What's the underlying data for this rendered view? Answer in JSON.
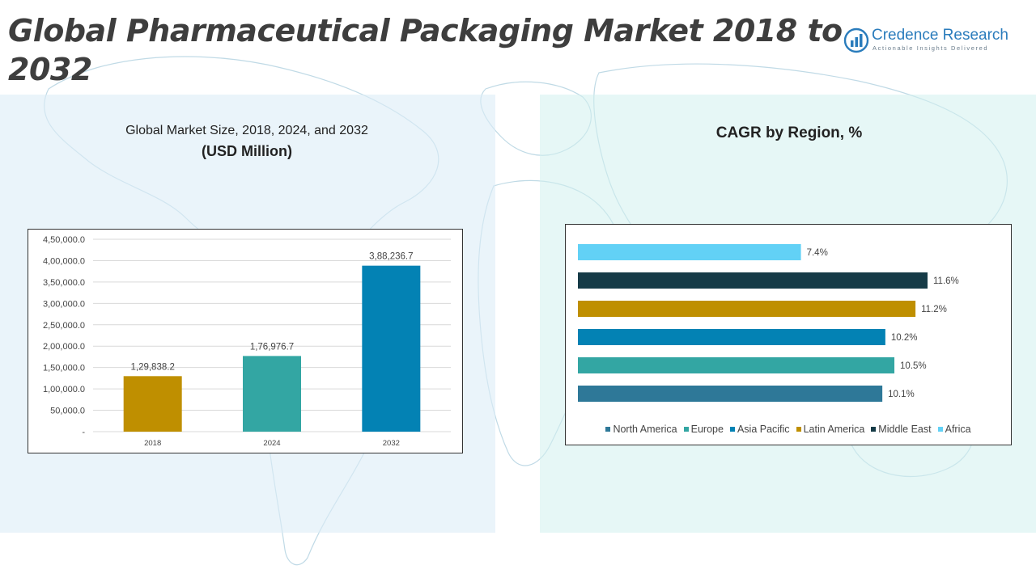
{
  "header": {
    "title": "Global Pharmaceutical Packaging Market 2018 to 2032"
  },
  "logo": {
    "name": "Credence Research",
    "tagline": "Actionable Insights Delivered",
    "icon": "bar-chart-circle-icon"
  },
  "chart_data": [
    {
      "type": "bar",
      "title": "Global Market Size, 2018, 2024, and 2032",
      "subtitle": "(USD Million)",
      "categories": [
        "2018",
        "2024",
        "2032"
      ],
      "values": [
        129838.2,
        176976.7,
        388236.7
      ],
      "value_labels": [
        "1,29,838.2",
        "1,76,976.7",
        "3,88,236.7"
      ],
      "colors": [
        "#bf8f00",
        "#33a6a3",
        "#0382b4"
      ],
      "ylim": [
        0,
        450000
      ],
      "yticks": [
        "-",
        "50,000.0",
        "1,00,000.0",
        "1,50,000.0",
        "2,00,000.0",
        "2,50,000.0",
        "3,00,000.0",
        "3,50,000.0",
        "4,00,000.0",
        "4,50,000.0"
      ],
      "ytick_values": [
        0,
        50000,
        100000,
        150000,
        200000,
        250000,
        300000,
        350000,
        400000,
        450000
      ],
      "grid": true,
      "xlabel": "",
      "ylabel": ""
    },
    {
      "type": "bar",
      "orientation": "horizontal",
      "title": "CAGR by Region, %",
      "categories": [
        "North America",
        "Europe",
        "Asia Pacific",
        "Latin America",
        "Middle East",
        "Africa"
      ],
      "values": [
        10.1,
        10.5,
        10.2,
        11.2,
        11.6,
        7.4
      ],
      "value_labels": [
        "10.1%",
        "10.5%",
        "10.2%",
        "11.2%",
        "11.6%",
        "7.4%"
      ],
      "colors": [
        "#2e7898",
        "#33a6a3",
        "#0382b4",
        "#bf8f00",
        "#163b47",
        "#62d1f6"
      ],
      "xlim": [
        0,
        12
      ],
      "legend": "bottom",
      "grid": false
    }
  ]
}
